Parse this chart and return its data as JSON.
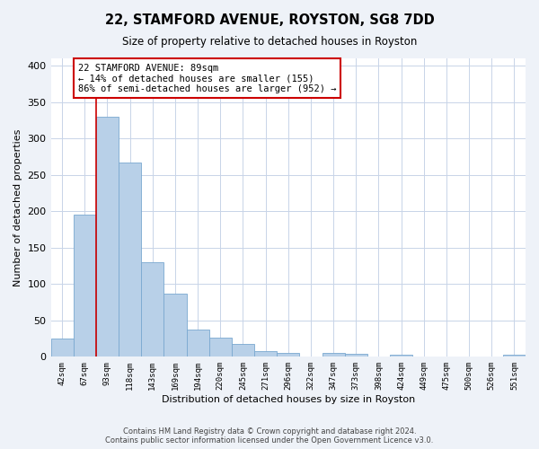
{
  "title1": "22, STAMFORD AVENUE, ROYSTON, SG8 7DD",
  "title2": "Size of property relative to detached houses in Royston",
  "xlabel": "Distribution of detached houses by size in Royston",
  "ylabel": "Number of detached properties",
  "bar_labels": [
    "42sqm",
    "67sqm",
    "93sqm",
    "118sqm",
    "143sqm",
    "169sqm",
    "194sqm",
    "220sqm",
    "245sqm",
    "271sqm",
    "296sqm",
    "322sqm",
    "347sqm",
    "373sqm",
    "398sqm",
    "424sqm",
    "449sqm",
    "475sqm",
    "500sqm",
    "526sqm",
    "551sqm"
  ],
  "bar_values": [
    25,
    195,
    330,
    267,
    130,
    87,
    38,
    26,
    18,
    8,
    5,
    0,
    5,
    4,
    0,
    3,
    0,
    0,
    0,
    0,
    3
  ],
  "bar_color": "#b8d0e8",
  "bar_edge_color": "#7aa8d0",
  "property_line_bar_index": 2,
  "annotation_title": "22 STAMFORD AVENUE: 89sqm",
  "annotation_line1": "← 14% of detached houses are smaller (155)",
  "annotation_line2": "86% of semi-detached houses are larger (952) →",
  "annotation_box_color": "#ffffff",
  "annotation_box_edge": "#cc0000",
  "property_line_color": "#cc0000",
  "ylim": [
    0,
    410
  ],
  "yticks": [
    0,
    50,
    100,
    150,
    200,
    250,
    300,
    350,
    400
  ],
  "footer1": "Contains HM Land Registry data © Crown copyright and database right 2024.",
  "footer2": "Contains public sector information licensed under the Open Government Licence v3.0.",
  "bg_color": "#eef2f8",
  "plot_bg_color": "#ffffff",
  "grid_color": "#c8d4e8"
}
